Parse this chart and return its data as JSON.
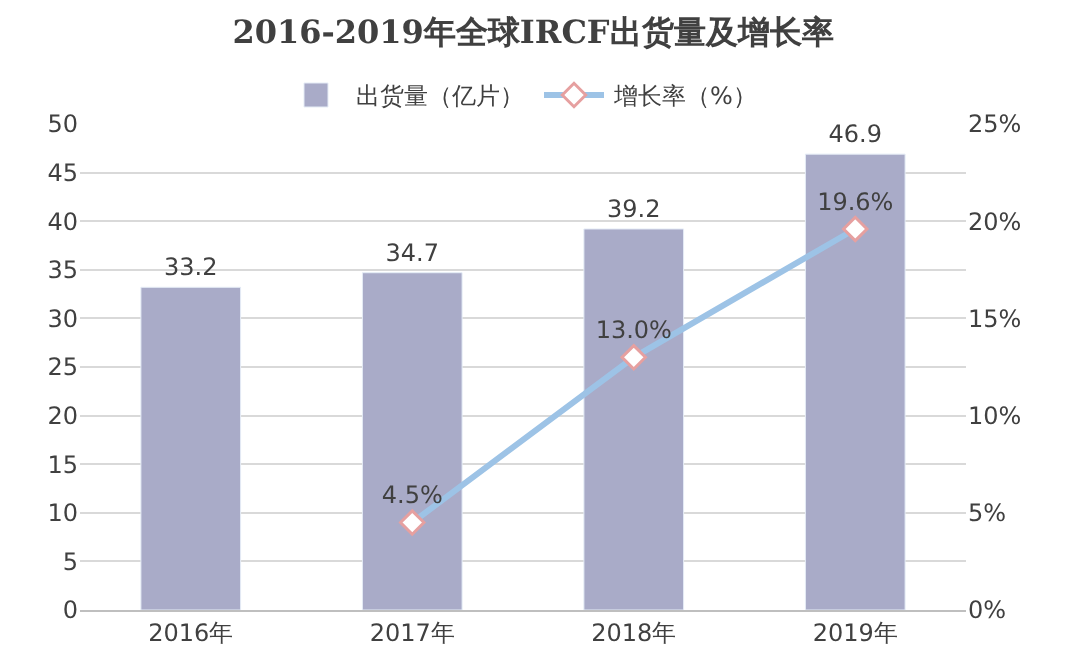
{
  "chart_data": {
    "type": "bar",
    "title": "2016-2019年全球IRCF出货量及增长率",
    "categories": [
      "2016年",
      "2017年",
      "2018年",
      "2019年"
    ],
    "series": [
      {
        "name": "出货量（亿片）",
        "color": "#a9abc8",
        "values": [
          33.2,
          34.7,
          39.2,
          46.9
        ],
        "value_labels": [
          "33.2",
          "34.7",
          "39.2",
          "46.9"
        ]
      },
      {
        "name": "增长率（%）",
        "type": "line",
        "axis": "y2",
        "color": "#9dc3e6",
        "marker": "diamond",
        "values": [
          null,
          4.5,
          13.0,
          19.6
        ],
        "value_labels": [
          null,
          "4.5%",
          "13.0%",
          "19.6%"
        ]
      }
    ],
    "ylim": [
      0,
      50
    ],
    "yticks": [
      0,
      5,
      10,
      15,
      20,
      25,
      30,
      35,
      40,
      45,
      50
    ],
    "y2lim": [
      0,
      25
    ],
    "y2ticks": [
      {
        "value": 0,
        "label": "0%"
      },
      {
        "value": 5,
        "label": "5%"
      },
      {
        "value": 10,
        "label": "10%"
      },
      {
        "value": 15,
        "label": "15%"
      },
      {
        "value": 20,
        "label": "20%"
      },
      {
        "value": 25,
        "label": "25%"
      }
    ],
    "grid": "y",
    "legend": "top"
  }
}
